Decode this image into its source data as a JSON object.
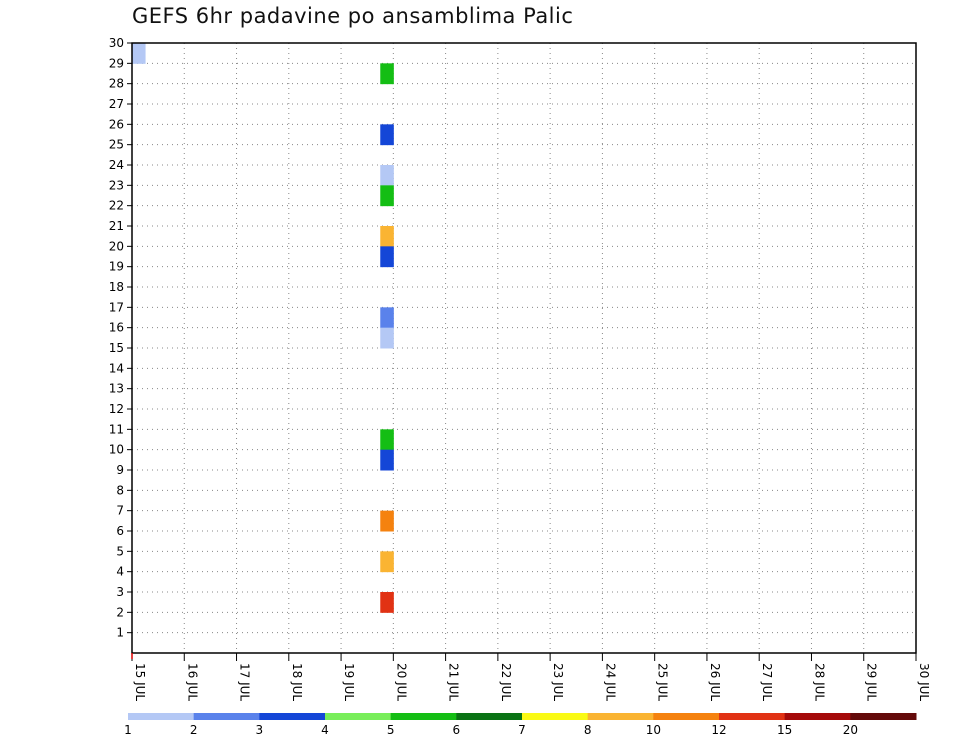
{
  "chart_data": {
    "type": "heatmap",
    "title": "GEFS 6hr padavine po ansamblima Palic",
    "xlabel": "",
    "ylabel": "",
    "y_ticks": [
      1,
      2,
      3,
      4,
      5,
      6,
      7,
      8,
      9,
      10,
      11,
      12,
      13,
      14,
      15,
      16,
      17,
      18,
      19,
      20,
      21,
      22,
      23,
      24,
      25,
      26,
      27,
      28,
      29,
      30
    ],
    "ylim": [
      0,
      30
    ],
    "x_ticks": [
      "15 JUL",
      "16 JUL",
      "17 JUL",
      "18 JUL",
      "19 JUL",
      "20 JUL",
      "21 JUL",
      "22 JUL",
      "23 JUL",
      "24 JUL",
      "25 JUL",
      "26 JUL",
      "27 JUL",
      "28 JUL",
      "29 JUL",
      "30 JUL"
    ],
    "xlim": [
      "15 JUL 00Z",
      "30 JUL 00Z"
    ],
    "time_step_hours": 6,
    "grid": true,
    "colorbar": {
      "labels": [
        1,
        2,
        3,
        4,
        5,
        6,
        7,
        8,
        10,
        12,
        15,
        20
      ],
      "colors": [
        "#b4c8f5",
        "#5a82eb",
        "#1446d7",
        "#78ee5a",
        "#14be14",
        "#0a7314",
        "#fafa14",
        "#fab432",
        "#f5820f",
        "#e13214",
        "#a50a0a",
        "#640a0a"
      ],
      "placement": "bottom"
    },
    "cells": [
      {
        "t": "15.00Z",
        "member": 30,
        "value": 1
      },
      {
        "t": "19.18Z",
        "member": 29,
        "value": 5
      },
      {
        "t": "19.18Z",
        "member": 26,
        "value": 3
      },
      {
        "t": "19.18Z",
        "member": 24,
        "value": 1
      },
      {
        "t": "19.18Z",
        "member": 23,
        "value": 5
      },
      {
        "t": "19.18Z",
        "member": 21,
        "value": 8
      },
      {
        "t": "19.18Z",
        "member": 20,
        "value": 3
      },
      {
        "t": "19.18Z",
        "member": 17,
        "value": 2
      },
      {
        "t": "19.18Z",
        "member": 16,
        "value": 1
      },
      {
        "t": "19.18Z",
        "member": 11,
        "value": 5
      },
      {
        "t": "19.18Z",
        "member": 10,
        "value": 3
      },
      {
        "t": "19.18Z",
        "member": 7,
        "value": 10
      },
      {
        "t": "19.18Z",
        "member": 5,
        "value": 8
      },
      {
        "t": "19.18Z",
        "member": 3,
        "value": 12
      }
    ]
  }
}
